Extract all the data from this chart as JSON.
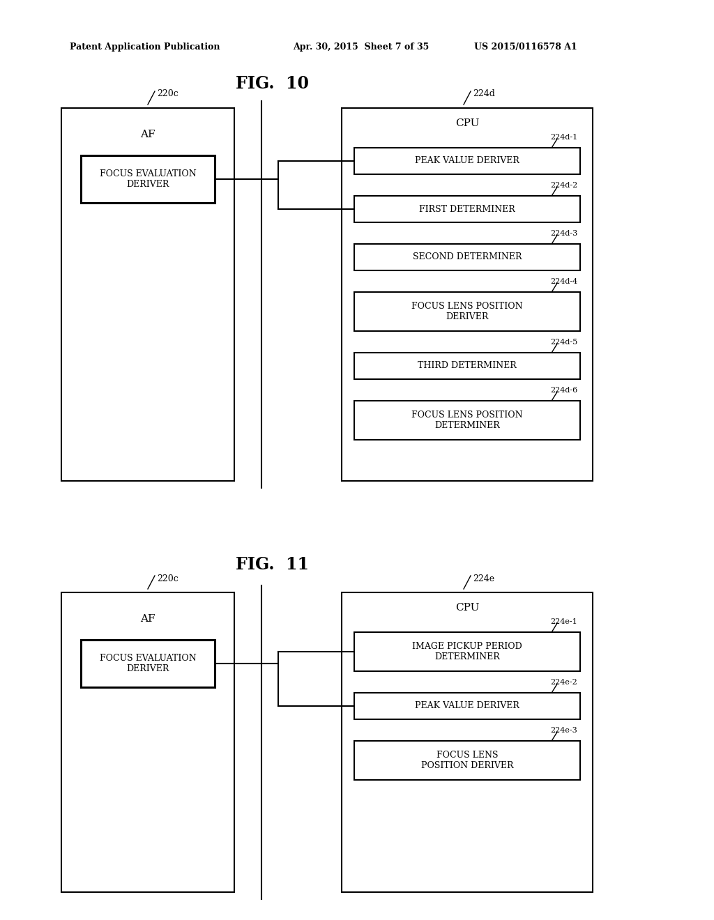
{
  "background_color": "#ffffff",
  "header_left": "Patent Application Publication",
  "header_mid": "Apr. 30, 2015  Sheet 7 of 35",
  "header_right": "US 2015/0116578 A1",
  "fig10_title": "FIG.  10",
  "fig11_title": "FIG.  11",
  "fig10": {
    "left_box_label": "220c",
    "left_box_title": "AF",
    "left_inner_box": "FOCUS EVALUATION\nDERIVER",
    "right_box_label": "224d",
    "right_box_title": "CPU",
    "right_items": [
      {
        "label": "224d-1",
        "text": "PEAK VALUE DERIVER",
        "two_line": false
      },
      {
        "label": "224d-2",
        "text": "FIRST DETERMINER",
        "two_line": false
      },
      {
        "label": "224d-3",
        "text": "SECOND DETERMINER",
        "two_line": false
      },
      {
        "label": "224d-4",
        "text": "FOCUS LENS POSITION\nDERIVER",
        "two_line": true
      },
      {
        "label": "224d-5",
        "text": "THIRD DETERMINER",
        "two_line": false
      },
      {
        "label": "224d-6",
        "text": "FOCUS LENS POSITION\nDETERMINER",
        "two_line": true
      }
    ]
  },
  "fig11": {
    "left_box_label": "220c",
    "left_box_title": "AF",
    "left_inner_box": "FOCUS EVALUATION\nDERIVER",
    "right_box_label": "224e",
    "right_box_title": "CPU",
    "right_items": [
      {
        "label": "224e-1",
        "text": "IMAGE PICKUP PERIOD\nDETERMINER",
        "two_line": true
      },
      {
        "label": "224e-2",
        "text": "PEAK VALUE DERIVER",
        "two_line": false
      },
      {
        "label": "224e-3",
        "text": "FOCUS LENS\nPOSITION DERIVER",
        "two_line": true
      }
    ]
  }
}
